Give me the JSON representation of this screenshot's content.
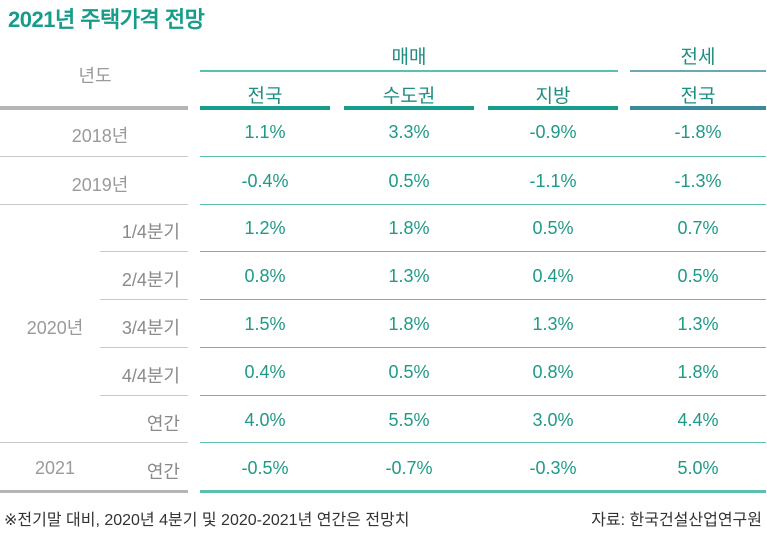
{
  "title": "2021년 주택가격 전망",
  "header": {
    "year_label": "년도",
    "group_sale": "매매",
    "group_lease": "전세",
    "columns": [
      "전국",
      "수도권",
      "지방",
      "전국"
    ]
  },
  "rows": [
    {
      "year": "2018년",
      "period": "",
      "values": [
        "1.1%",
        "3.3%",
        "-0.9%",
        "-1.8%"
      ]
    },
    {
      "year": "2019년",
      "period": "",
      "values": [
        "-0.4%",
        "0.5%",
        "-1.1%",
        "-1.3%"
      ]
    },
    {
      "year": "",
      "period": "1/4분기",
      "values": [
        "1.2%",
        "1.8%",
        "0.5%",
        "0.7%"
      ]
    },
    {
      "year": "",
      "period": "2/4분기",
      "values": [
        "0.8%",
        "1.3%",
        "0.4%",
        "0.5%"
      ]
    },
    {
      "year": "2020년",
      "period": "3/4분기",
      "values": [
        "1.5%",
        "1.8%",
        "1.3%",
        "1.3%"
      ]
    },
    {
      "year": "",
      "period": "4/4분기",
      "values": [
        "0.4%",
        "0.5%",
        "0.8%",
        "1.8%"
      ]
    },
    {
      "year": "",
      "period": "연간",
      "values": [
        "4.0%",
        "5.5%",
        "3.0%",
        "4.4%"
      ]
    },
    {
      "year": "2021",
      "period": "연간",
      "values": [
        "-0.5%",
        "-0.7%",
        "-0.3%",
        "5.0%"
      ]
    }
  ],
  "footer": {
    "note": "※전기말 대비, 2020년 4분기 및 2020-2021년 연간은 전망치",
    "source": "자료: 한국건설산업연구원"
  },
  "colors": {
    "accent": "#169c8a",
    "lease_accent": "#3a8a9a",
    "row_line": "#5cc0b0",
    "gray_line": "#b5b5b5"
  },
  "chart_data": {
    "type": "table",
    "title": "2021년 주택가격 전망",
    "columns": [
      "매매 전국",
      "매매 수도권",
      "매매 지방",
      "전세 전국"
    ],
    "rows": [
      {
        "label": "2018년",
        "values": [
          1.1,
          3.3,
          -0.9,
          -1.8
        ]
      },
      {
        "label": "2019년",
        "values": [
          -0.4,
          0.5,
          -1.1,
          -1.3
        ]
      },
      {
        "label": "2020년 1/4분기",
        "values": [
          1.2,
          1.8,
          0.5,
          0.7
        ]
      },
      {
        "label": "2020년 2/4분기",
        "values": [
          0.8,
          1.3,
          0.4,
          0.5
        ]
      },
      {
        "label": "2020년 3/4분기",
        "values": [
          1.5,
          1.8,
          1.3,
          1.3
        ]
      },
      {
        "label": "2020년 4/4분기",
        "values": [
          0.4,
          0.5,
          0.8,
          1.8
        ]
      },
      {
        "label": "2020년 연간",
        "values": [
          4.0,
          5.5,
          3.0,
          4.4
        ]
      },
      {
        "label": "2021 연간",
        "values": [
          -0.5,
          -0.7,
          -0.3,
          5.0
        ]
      }
    ]
  }
}
